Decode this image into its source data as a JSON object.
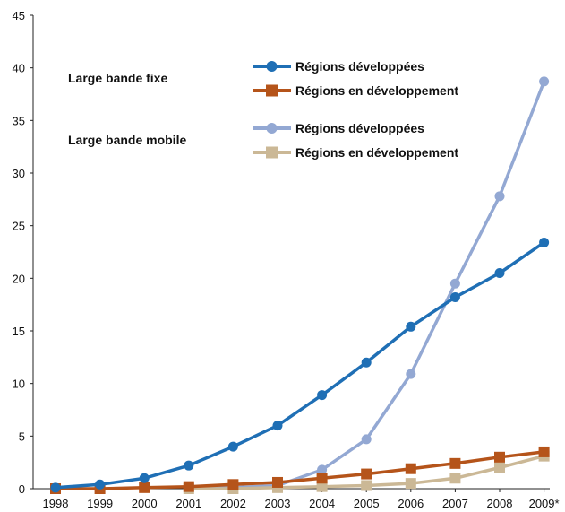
{
  "chart_data": {
    "type": "line",
    "title": "",
    "xlabel": "",
    "ylabel": "",
    "categories": [
      "1998",
      "1999",
      "2000",
      "2001",
      "2002",
      "2003",
      "2004",
      "2005",
      "2006",
      "2007",
      "2008",
      "2009*"
    ],
    "ylim": [
      0,
      45
    ],
    "y_ticks": [
      "0",
      "5",
      "10",
      "15",
      "20",
      "25",
      "30",
      "35",
      "40",
      "45"
    ],
    "grid": false,
    "legend_groups": [
      "Large bande fixe",
      "Large bande mobile"
    ],
    "series": [
      {
        "name": "Régions développées",
        "group": "Large bande fixe",
        "marker": "circle",
        "color": "#1f6fb5",
        "values": [
          0.1,
          0.4,
          1.0,
          2.2,
          4.0,
          6.0,
          8.9,
          12.0,
          15.4,
          18.2,
          20.5,
          23.4
        ]
      },
      {
        "name": "Régions en développement",
        "group": "Large bande fixe",
        "marker": "square",
        "color": "#b5541a",
        "values": [
          0.0,
          0.0,
          0.1,
          0.2,
          0.4,
          0.6,
          1.0,
          1.4,
          1.9,
          2.4,
          3.0,
          3.5
        ]
      },
      {
        "name": "Régions développées",
        "group": "Large bande mobile",
        "marker": "circle",
        "color": "#93a8d3",
        "values": [
          null,
          null,
          null,
          0.0,
          0.1,
          0.3,
          1.8,
          4.7,
          10.9,
          19.5,
          27.8,
          38.7
        ]
      },
      {
        "name": "Régions en développement",
        "group": "Large bande mobile",
        "marker": "square",
        "color": "#cbb896",
        "values": [
          null,
          null,
          null,
          0.0,
          0.0,
          0.1,
          0.2,
          0.3,
          0.5,
          1.0,
          2.0,
          3.1
        ]
      }
    ]
  }
}
